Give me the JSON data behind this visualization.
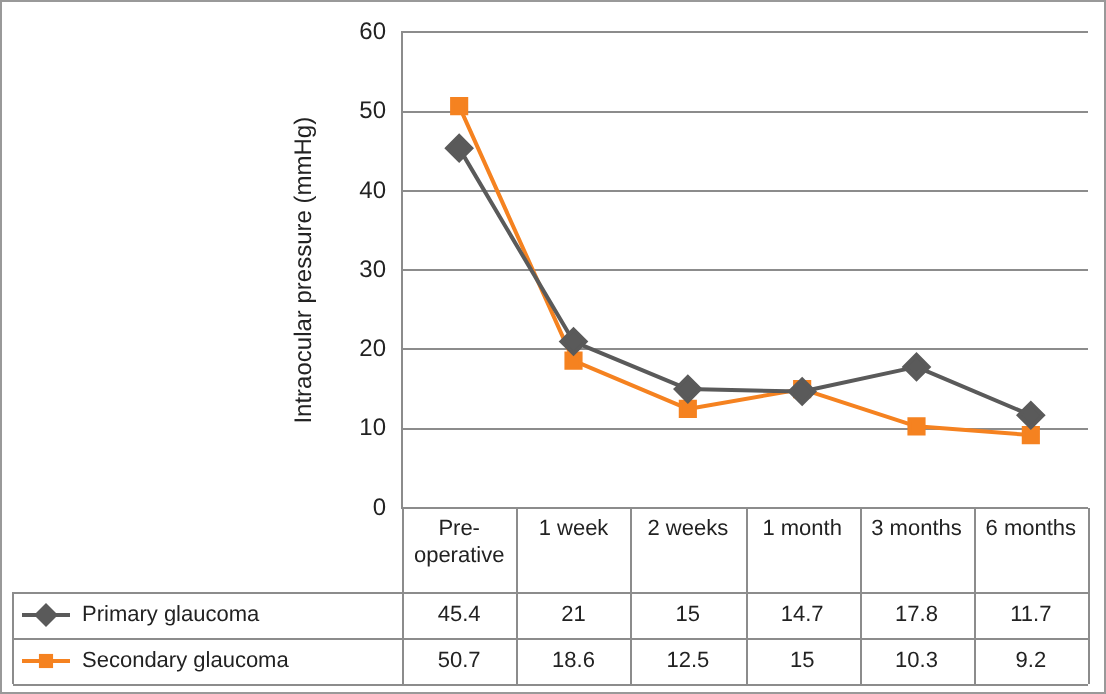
{
  "chart_data": {
    "type": "line",
    "ylabel": "Intraocular pressure (mmHg)",
    "categories": [
      "Pre-operative",
      "1 week",
      "2 weeks",
      "1 month",
      "3 months",
      "6 months"
    ],
    "series": [
      {
        "name": "Primary glaucoma",
        "color": "#5a5a5a",
        "marker": "diamond",
        "values": [
          45.4,
          21,
          15,
          14.7,
          17.8,
          11.7
        ]
      },
      {
        "name": "Secondary glaucoma",
        "color": "#f58220",
        "marker": "square",
        "values": [
          50.7,
          18.6,
          12.5,
          15,
          10.3,
          9.2
        ]
      }
    ],
    "ylim": [
      0,
      60
    ],
    "yticks": [
      0,
      10,
      20,
      30,
      40,
      50,
      60
    ],
    "grid": "y",
    "legend": "bottom",
    "data_labels": true,
    "line_style": "solid"
  }
}
